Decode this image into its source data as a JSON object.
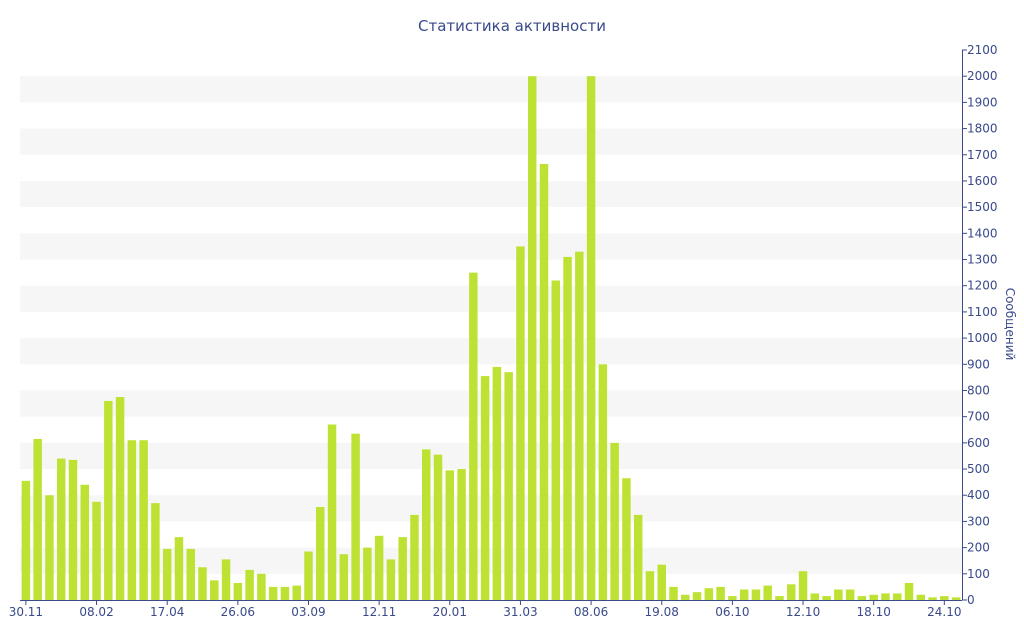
{
  "chart_data": {
    "type": "bar",
    "title": "Статистика активности",
    "xlabel": "",
    "ylabel": "Сообщений",
    "ylim": [
      0,
      2100
    ],
    "y_ticks": [
      0,
      100,
      200,
      300,
      400,
      500,
      600,
      700,
      800,
      900,
      1000,
      1100,
      1200,
      1300,
      1400,
      1500,
      1600,
      1700,
      1800,
      1900,
      2000,
      2100
    ],
    "y_axis_side": "right",
    "grid": "horizontal alternating bands",
    "x_tick_labels": [
      {
        "index": 0,
        "label": "30.11"
      },
      {
        "index": 6,
        "label": "08.02"
      },
      {
        "index": 12,
        "label": "17.04"
      },
      {
        "index": 18,
        "label": "26.06"
      },
      {
        "index": 24,
        "label": "03.09"
      },
      {
        "index": 30,
        "label": "12.11"
      },
      {
        "index": 36,
        "label": "20.01"
      },
      {
        "index": 42,
        "label": "31.03"
      },
      {
        "index": 48,
        "label": "08.06"
      },
      {
        "index": 54,
        "label": "19.08"
      },
      {
        "index": 60,
        "label": "06.10"
      },
      {
        "index": 66,
        "label": "12.10"
      },
      {
        "index": 72,
        "label": "18.10"
      },
      {
        "index": 78,
        "label": "24.10"
      }
    ],
    "values": [
      455,
      615,
      400,
      540,
      535,
      440,
      375,
      760,
      775,
      610,
      610,
      370,
      195,
      240,
      195,
      125,
      75,
      155,
      65,
      115,
      100,
      50,
      50,
      55,
      185,
      355,
      670,
      175,
      635,
      200,
      245,
      155,
      240,
      325,
      575,
      555,
      495,
      500,
      1250,
      855,
      890,
      870,
      1350,
      2000,
      1665,
      1220,
      1310,
      1330,
      2000,
      900,
      600,
      465,
      325,
      110,
      135,
      50,
      20,
      30,
      45,
      50,
      15,
      40,
      40,
      55,
      15,
      60,
      110,
      25,
      15,
      40,
      40,
      15,
      20,
      25,
      25,
      65,
      20,
      10,
      15,
      10
    ],
    "colors": {
      "bar": "#bde233",
      "axis": "#3a4a8a",
      "band": "#f6f6f6"
    }
  }
}
